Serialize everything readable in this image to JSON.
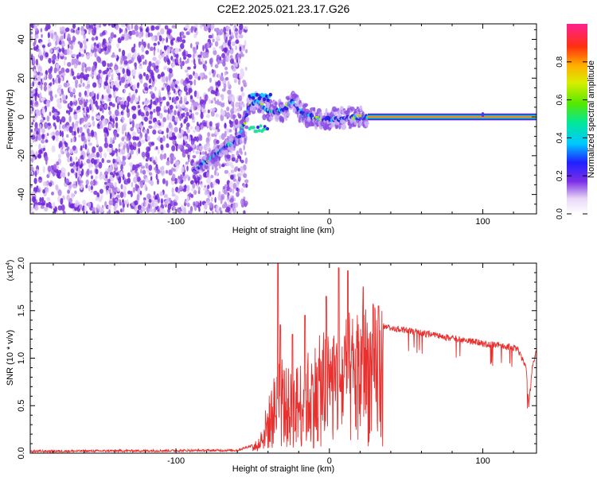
{
  "title": "C2E2.2025.021.23.17.G26",
  "chart_data": [
    {
      "type": "heatmap",
      "xlabel": "Height of straight line (km)",
      "ylabel": "Frequency (Hz)",
      "xlim": [
        -195,
        135
      ],
      "ylim": [
        -50,
        48
      ],
      "xticks": [
        -100,
        0,
        100
      ],
      "yticks": [
        -40,
        -20,
        0,
        20,
        40
      ],
      "colorbar": {
        "label": "Normalized spectral amplitude",
        "range": [
          0,
          1
        ],
        "ticks": [
          "0.0",
          "0.2",
          "0.4",
          "0.6",
          "0.8"
        ]
      },
      "features": {
        "noise_region_x": [
          -195,
          -58
        ],
        "ridge": [
          {
            "x": -88,
            "y": -27
          },
          {
            "x": -78,
            "y": -22
          },
          {
            "x": -68,
            "y": -16
          },
          {
            "x": -60,
            "y": -12
          },
          {
            "x": -56,
            "y": -5
          },
          {
            "x": -52,
            "y": 6
          },
          {
            "x": -46,
            "y": 8
          },
          {
            "x": -40,
            "y": 3
          },
          {
            "x": -30,
            "y": 3
          },
          {
            "x": -24,
            "y": 8
          },
          {
            "x": -18,
            "y": 2
          },
          {
            "x": -8,
            "y": -1
          },
          {
            "x": 5,
            "y": -1
          },
          {
            "x": 20,
            "y": 0
          },
          {
            "x": 25,
            "y": 0
          },
          {
            "x": 135,
            "y": 0
          }
        ],
        "line_from_x": 25
      }
    },
    {
      "type": "line",
      "xlabel": "Height of straight line (km)",
      "ylabel": "SNR (10 * v/v)",
      "yunit": "(x10",
      "yunit_exp": "4",
      "yunit_close": ")",
      "xlim": [
        -195,
        135
      ],
      "ylim": [
        0,
        2.0
      ],
      "xticks": [
        -100,
        0,
        100
      ],
      "yticks": [
        "0.0",
        "0.5",
        "1.0",
        "1.5",
        "2.0"
      ],
      "series": [
        {
          "color": "#e8312f",
          "envelope": [
            [
              -195,
              0.02
            ],
            [
              -60,
              0.03
            ],
            [
              -47,
              0.1
            ],
            [
              -40,
              0.5
            ],
            [
              -33,
              0.9
            ],
            [
              -25,
              0.75
            ],
            [
              -15,
              0.95
            ],
            [
              -5,
              1.1
            ],
            [
              5,
              1.25
            ],
            [
              15,
              1.3
            ],
            [
              25,
              1.4
            ],
            [
              32,
              1.38
            ],
            [
              50,
              1.33
            ],
            [
              70,
              1.27
            ],
            [
              90,
              1.22
            ],
            [
              100,
              1.19
            ],
            [
              115,
              1.16
            ],
            [
              122,
              1.14
            ],
            [
              128,
              0.95
            ],
            [
              130,
              0.53
            ],
            [
              132,
              0.9
            ],
            [
              135,
              1.12
            ]
          ],
          "peaks": [
            [
              -33.5,
              2.0
            ],
            [
              -32,
              1.35
            ],
            [
              -24,
              1.25
            ],
            [
              -16,
              1.45
            ],
            [
              -2,
              1.65
            ],
            [
              6,
              1.95
            ],
            [
              12,
              1.92
            ],
            [
              22,
              1.75
            ],
            [
              32,
              1.55
            ]
          ]
        }
      ]
    }
  ]
}
